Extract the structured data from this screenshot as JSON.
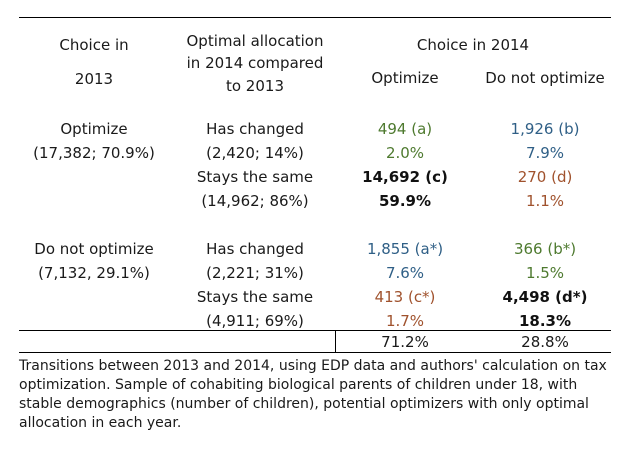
{
  "header": {
    "col1": [
      "Choice in",
      "2013"
    ],
    "col2": [
      "Optimal allocation",
      "in 2014 compared",
      "to 2013"
    ],
    "group": "Choice in 2014",
    "opt": "Optimize",
    "notopt": "Do not optimize"
  },
  "rows": [
    {
      "choice2013": [
        "Optimize",
        "(17,382; 70.9%)"
      ],
      "lines": [
        {
          "alloc": "Has changed",
          "opt": "494 (a)",
          "opt_color": "green",
          "opt_bold": false,
          "notopt": "1,926 (b)",
          "notopt_color": "blue",
          "notopt_bold": false
        },
        {
          "alloc": "(2,420; 14%)",
          "opt": "2.0%",
          "opt_color": "green",
          "opt_bold": false,
          "notopt": "7.9%",
          "notopt_color": "blue",
          "notopt_bold": false
        },
        {
          "alloc": "Stays the same",
          "opt": "14,692 (c)",
          "opt_color": "black",
          "opt_bold": true,
          "notopt": "270 (d)",
          "notopt_color": "brown",
          "notopt_bold": false
        },
        {
          "alloc": "(14,962; 86%)",
          "opt": "59.9%",
          "opt_color": "black",
          "opt_bold": true,
          "notopt": "1.1%",
          "notopt_color": "brown",
          "notopt_bold": false
        }
      ]
    },
    {
      "choice2013": [
        "Do not optimize",
        "(7,132, 29.1%)"
      ],
      "lines": [
        {
          "alloc": "Has changed",
          "opt": "1,855 (a*)",
          "opt_color": "blue",
          "opt_bold": false,
          "notopt": "366 (b*)",
          "notopt_color": "green",
          "notopt_bold": false
        },
        {
          "alloc": "(2,221; 31%)",
          "opt": "7.6%",
          "opt_color": "blue",
          "opt_bold": false,
          "notopt": "1.5%",
          "notopt_color": "green",
          "notopt_bold": false
        },
        {
          "alloc": "Stays the same",
          "opt": "413 (c*)",
          "opt_color": "brown",
          "opt_bold": false,
          "notopt": "4,498 (d*)",
          "notopt_color": "black",
          "notopt_bold": true
        },
        {
          "alloc": "(4,911; 69%)",
          "opt": "1.7%",
          "opt_color": "brown",
          "opt_bold": false,
          "notopt": "18.3%",
          "notopt_color": "black",
          "notopt_bold": true
        }
      ]
    }
  ],
  "totals": {
    "opt": "71.2%",
    "notopt": "28.8%"
  },
  "caption": [
    "Transitions between 2013 and 2014, using EDP data and authors' calculation on tax",
    "optimization. Sample of cohabiting biological parents of children under 18, with",
    "stable demographics (number of children), potential optimizers with only optimal",
    "allocation in each year."
  ],
  "colors": {
    "green": "#4e7a2f",
    "blue": "#2f5f86",
    "brown": "#a0522d",
    "black": "#111111"
  }
}
